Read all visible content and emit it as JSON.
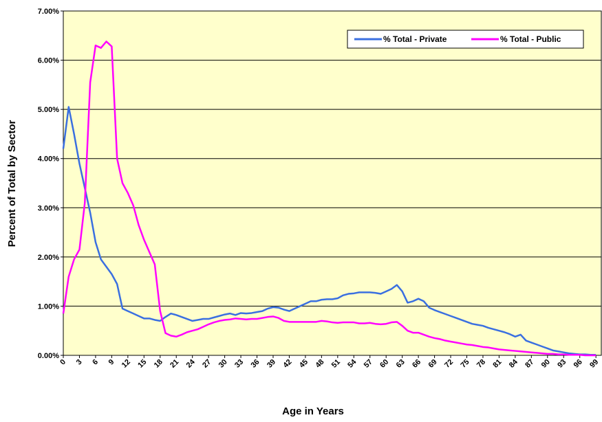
{
  "chart_data": {
    "type": "line",
    "x": [
      0,
      1,
      2,
      3,
      4,
      5,
      6,
      7,
      8,
      9,
      10,
      11,
      12,
      13,
      14,
      15,
      16,
      17,
      18,
      19,
      20,
      21,
      22,
      23,
      24,
      25,
      26,
      27,
      28,
      29,
      30,
      31,
      32,
      33,
      34,
      35,
      36,
      37,
      38,
      39,
      40,
      41,
      42,
      43,
      44,
      45,
      46,
      47,
      48,
      49,
      50,
      51,
      52,
      53,
      54,
      55,
      56,
      57,
      58,
      59,
      60,
      61,
      62,
      63,
      64,
      65,
      66,
      67,
      68,
      69,
      70,
      71,
      72,
      73,
      74,
      75,
      76,
      77,
      78,
      79,
      80,
      81,
      82,
      83,
      84,
      85,
      86,
      87,
      88,
      89,
      90,
      91,
      92,
      93,
      94,
      95,
      96,
      97,
      98,
      99
    ],
    "series": [
      {
        "name": "% Total - Private",
        "color": "#3a6fe0",
        "values": [
          4.2,
          5.05,
          4.5,
          3.9,
          3.4,
          2.9,
          2.3,
          1.95,
          1.8,
          1.65,
          1.45,
          0.95,
          0.9,
          0.85,
          0.8,
          0.75,
          0.75,
          0.72,
          0.7,
          0.78,
          0.85,
          0.82,
          0.78,
          0.74,
          0.7,
          0.72,
          0.74,
          0.74,
          0.77,
          0.8,
          0.83,
          0.85,
          0.82,
          0.86,
          0.85,
          0.86,
          0.88,
          0.9,
          0.95,
          0.98,
          0.97,
          0.93,
          0.9,
          0.95,
          1.0,
          1.05,
          1.1,
          1.1,
          1.13,
          1.14,
          1.14,
          1.16,
          1.22,
          1.25,
          1.26,
          1.28,
          1.28,
          1.28,
          1.27,
          1.25,
          1.3,
          1.35,
          1.43,
          1.3,
          1.07,
          1.1,
          1.15,
          1.1,
          0.97,
          0.92,
          0.88,
          0.84,
          0.8,
          0.76,
          0.72,
          0.68,
          0.64,
          0.62,
          0.6,
          0.56,
          0.53,
          0.5,
          0.47,
          0.43,
          0.38,
          0.42,
          0.3,
          0.26,
          0.22,
          0.18,
          0.14,
          0.1,
          0.08,
          0.06,
          0.04,
          0.03,
          0.02,
          0.02,
          0.01,
          0.01
        ]
      },
      {
        "name": "% Total - Public",
        "color": "#ff00ff",
        "values": [
          0.85,
          1.6,
          1.95,
          2.15,
          3.1,
          5.55,
          6.3,
          6.25,
          6.38,
          6.28,
          4.0,
          3.5,
          3.3,
          3.05,
          2.65,
          2.35,
          2.1,
          1.85,
          0.9,
          0.45,
          0.4,
          0.38,
          0.42,
          0.47,
          0.5,
          0.53,
          0.58,
          0.63,
          0.67,
          0.7,
          0.72,
          0.73,
          0.75,
          0.74,
          0.73,
          0.74,
          0.74,
          0.76,
          0.78,
          0.79,
          0.76,
          0.7,
          0.68,
          0.68,
          0.68,
          0.68,
          0.68,
          0.68,
          0.7,
          0.69,
          0.67,
          0.66,
          0.67,
          0.67,
          0.67,
          0.65,
          0.65,
          0.66,
          0.64,
          0.63,
          0.64,
          0.67,
          0.68,
          0.6,
          0.5,
          0.46,
          0.46,
          0.42,
          0.38,
          0.35,
          0.33,
          0.3,
          0.28,
          0.26,
          0.24,
          0.22,
          0.21,
          0.19,
          0.17,
          0.16,
          0.14,
          0.12,
          0.11,
          0.1,
          0.09,
          0.08,
          0.07,
          0.06,
          0.05,
          0.04,
          0.03,
          0.03,
          0.02,
          0.02,
          0.01,
          0.01,
          0.01,
          0.0,
          0.0,
          0.0
        ]
      }
    ],
    "xlabel": "Age in Years",
    "ylabel": "Percent of Total by Sector",
    "xlim": [
      0,
      100
    ],
    "xticks": [
      0,
      3,
      6,
      9,
      12,
      15,
      18,
      21,
      24,
      27,
      30,
      33,
      36,
      39,
      42,
      45,
      48,
      51,
      54,
      57,
      60,
      63,
      66,
      69,
      72,
      75,
      78,
      81,
      84,
      87,
      90,
      93,
      96,
      99
    ],
    "ylim": [
      0,
      7
    ],
    "yticks": [
      {
        "value": 0,
        "label": "0.00%"
      },
      {
        "value": 1,
        "label": "1.00%"
      },
      {
        "value": 2,
        "label": "2.00%"
      },
      {
        "value": 3,
        "label": "3.00%"
      },
      {
        "value": 4,
        "label": "4.00%"
      },
      {
        "value": 5,
        "label": "5.00%"
      },
      {
        "value": 6,
        "label": "6.00%"
      },
      {
        "value": 7,
        "label": "7.00%"
      }
    ],
    "grid": true,
    "legend": "top-right"
  }
}
